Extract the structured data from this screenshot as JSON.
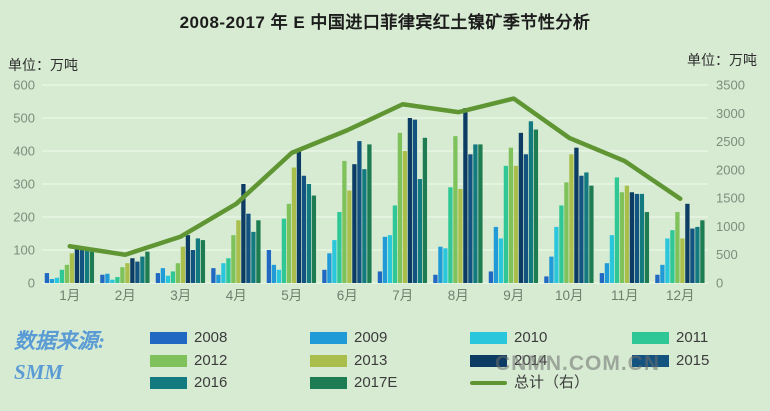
{
  "title": "2008-2017 年 E 中国进口菲律宾红土镍矿季节性分析",
  "left_axis": {
    "unit": "单位：万吨",
    "ticks": [
      600,
      500,
      400,
      300,
      200,
      100,
      0
    ]
  },
  "right_axis": {
    "unit": "单位：万吨",
    "ticks": [
      3500,
      3000,
      2500,
      2000,
      1500,
      1000,
      500,
      0
    ]
  },
  "watermarks": {
    "source_line1": "数据来源:",
    "source_line2": "SMM",
    "site": "CNMN.COM.CN"
  },
  "colors": {
    "background": "#D6EBD2",
    "gridline": "rgba(255,255,255,0.65)",
    "title_text": "#1c1c1c",
    "tick_text": "#7d8e7d"
  },
  "chart_data": {
    "type": "bar",
    "title": "2008-2017 年 E 中国进口菲律宾红土镍矿季节性分析",
    "unit": "万吨",
    "categories": [
      "1月",
      "2月",
      "3月",
      "4月",
      "5月",
      "6月",
      "7月",
      "8月",
      "9月",
      "10月",
      "11月",
      "12月"
    ],
    "ylim_left": [
      0,
      600
    ],
    "ylim_right": [
      0,
      3500
    ],
    "grid": true,
    "legend_position": "bottom",
    "series": [
      {
        "name": "2008",
        "color": "#2168C2",
        "values": [
          30,
          25,
          30,
          45,
          100,
          40,
          35,
          25,
          35,
          20,
          30,
          25
        ]
      },
      {
        "name": "2009",
        "color": "#209BD8",
        "values": [
          12,
          28,
          45,
          25,
          55,
          90,
          140,
          110,
          170,
          80,
          60,
          55
        ]
      },
      {
        "name": "2010",
        "color": "#2AC6DB",
        "values": [
          16,
          10,
          22,
          60,
          40,
          130,
          145,
          105,
          135,
          170,
          145,
          135
        ]
      },
      {
        "name": "2011",
        "color": "#2EC795",
        "values": [
          40,
          18,
          35,
          75,
          195,
          215,
          235,
          290,
          355,
          235,
          320,
          160
        ]
      },
      {
        "name": "2012",
        "color": "#7FC25C",
        "values": [
          55,
          48,
          60,
          145,
          240,
          370,
          455,
          445,
          410,
          305,
          275,
          215
        ]
      },
      {
        "name": "2013",
        "color": "#AABF4B",
        "values": [
          90,
          60,
          110,
          190,
          350,
          280,
          400,
          285,
          355,
          390,
          295,
          135
        ]
      },
      {
        "name": "2014",
        "color": "#0C3C63",
        "values": [
          105,
          75,
          145,
          300,
          400,
          360,
          500,
          530,
          455,
          410,
          275,
          240
        ]
      },
      {
        "name": "2015",
        "color": "#135380",
        "values": [
          103,
          65,
          100,
          210,
          325,
          430,
          495,
          390,
          390,
          325,
          270,
          165
        ]
      },
      {
        "name": "2016",
        "color": "#137A80",
        "values": [
          102,
          80,
          135,
          155,
          300,
          345,
          315,
          420,
          490,
          335,
          270,
          170
        ]
      },
      {
        "name": "2017E",
        "color": "#1D7C52",
        "values": [
          98,
          95,
          130,
          190,
          265,
          420,
          440,
          420,
          465,
          295,
          215,
          190
        ]
      }
    ],
    "line_series": {
      "name": "总计（右）",
      "color": "#5F9633",
      "axis": "right",
      "values": [
        650,
        500,
        820,
        1400,
        2300,
        2700,
        3160,
        3020,
        3260,
        2565,
        2155,
        1490
      ]
    }
  }
}
